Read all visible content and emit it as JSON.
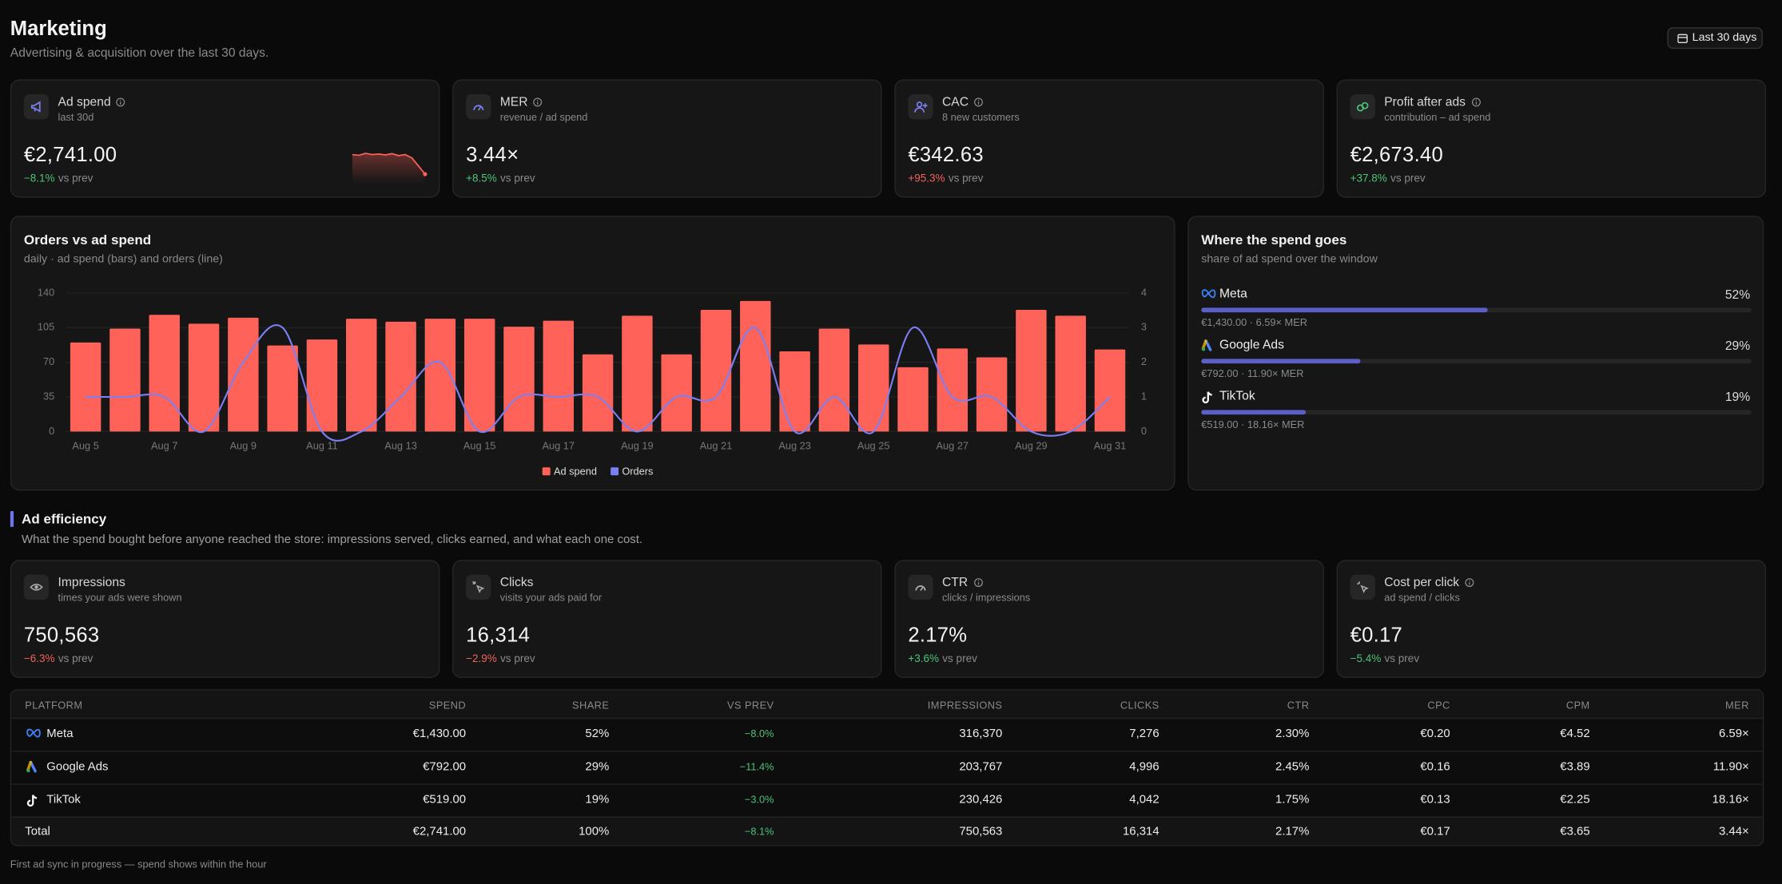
{
  "header": {
    "title": "Marketing",
    "subtitle": "Advertising & acquisition over the last 30 days.",
    "range_button": "Last 30 days"
  },
  "kpis": [
    {
      "title": "Ad spend",
      "subtitle": "last 30d",
      "value": "€2,741.00",
      "delta": "−8.1%",
      "comparison": "vs prev",
      "delta_color": "#4cc27a",
      "info": true,
      "sparkline": [
        80,
        78,
        84,
        80,
        82,
        79,
        83,
        77,
        80,
        70,
        45,
        20
      ]
    },
    {
      "title": "MER",
      "subtitle": "revenue / ad spend",
      "value": "3.44×",
      "delta": "+8.5%",
      "comparison": "vs prev",
      "delta_color": "#4cc27a",
      "info": true
    },
    {
      "title": "CAC",
      "subtitle": "8 new customers",
      "value": "€342.63",
      "delta": "+95.3%",
      "comparison": "vs prev",
      "delta_color": "#f0625a",
      "info": true
    },
    {
      "title": "Profit after ads",
      "subtitle": "contribution – ad spend",
      "value": "€2,673.40",
      "delta": "+37.8%",
      "comparison": "vs prev",
      "delta_color": "#4cc27a",
      "info": true
    }
  ],
  "chart_data": {
    "type": "bar",
    "title": "Orders vs ad spend",
    "subtitle": "daily · ad spend (bars) and orders (line)",
    "categories": [
      "Aug 5",
      null,
      "Aug 7",
      null,
      "Aug 9",
      null,
      "Aug 11",
      null,
      "Aug 13",
      null,
      "Aug 15",
      null,
      "Aug 17",
      null,
      "Aug 19",
      null,
      "Aug 21",
      null,
      "Aug 23",
      null,
      "Aug 25",
      null,
      "Aug 27",
      null,
      "Aug 29",
      null,
      "Aug 31"
    ],
    "series": [
      {
        "name": "Ad spend",
        "type": "bar",
        "color": "#ff6259",
        "values": [
          90,
          104,
          118,
          109,
          115,
          87,
          93,
          114,
          111,
          114,
          114,
          106,
          112,
          78,
          117,
          78,
          123,
          132,
          81,
          104,
          88,
          65,
          84,
          75,
          123,
          117,
          83
        ]
      },
      {
        "name": "Orders",
        "type": "line",
        "axis": "y2",
        "color": "#7c7ff2",
        "values": [
          1,
          1,
          1,
          0,
          2,
          3,
          0,
          0,
          1,
          2,
          0,
          1,
          1,
          1,
          0,
          1,
          1,
          3,
          0,
          1,
          0,
          3,
          1,
          1,
          0,
          0,
          1
        ]
      }
    ],
    "ylim": [
      0,
      140
    ],
    "yticks": [
      0,
      35,
      70,
      105,
      140
    ],
    "y2lim": [
      0,
      4
    ],
    "y2ticks": [
      0,
      1,
      2,
      3,
      4
    ],
    "grid": true,
    "legend": "bottom"
  },
  "spend_breakdown": {
    "title": "Where the spend goes",
    "subtitle": "share of ad spend over the window",
    "platforms": [
      {
        "name": "Meta",
        "share": 52,
        "share_label": "52%",
        "detail": "€1,430.00 · 6.59× MER",
        "color": "#5b5fc7"
      },
      {
        "name": "Google Ads",
        "share": 29,
        "share_label": "29%",
        "detail": "€792.00 · 11.90× MER",
        "color": "#5b5fc7"
      },
      {
        "name": "TikTok",
        "share": 19,
        "share_label": "19%",
        "detail": "€519.00 · 18.16× MER",
        "color": "#5b5fc7"
      }
    ]
  },
  "efficiency": {
    "title": "Ad efficiency",
    "description": "What the spend bought before anyone reached the store: impressions served, clicks earned, and what each one cost.",
    "kpis": [
      {
        "title": "Impressions",
        "subtitle": "times your ads were shown",
        "value": "750,563",
        "delta": "−6.3%",
        "comparison": "vs prev",
        "delta_color": "#f0625a",
        "info": false
      },
      {
        "title": "Clicks",
        "subtitle": "visits your ads paid for",
        "value": "16,314",
        "delta": "−2.9%",
        "comparison": "vs prev",
        "delta_color": "#f0625a",
        "info": false
      },
      {
        "title": "CTR",
        "subtitle": "clicks / impressions",
        "value": "2.17%",
        "delta": "+3.6%",
        "comparison": "vs prev",
        "delta_color": "#4cc27a",
        "info": true
      },
      {
        "title": "Cost per click",
        "subtitle": "ad spend / clicks",
        "value": "€0.17",
        "delta": "−5.4%",
        "comparison": "vs prev",
        "delta_color": "#4cc27a",
        "info": true
      }
    ]
  },
  "table": {
    "columns": [
      "PLATFORM",
      "SPEND",
      "SHARE",
      "VS PREV",
      "IMPRESSIONS",
      "CLICKS",
      "CTR",
      "CPC",
      "CPM",
      "MER"
    ],
    "rows": [
      [
        "Meta",
        "€1,430.00",
        "52%",
        "−8.0%",
        "316,370",
        "7,276",
        "2.30%",
        "€0.20",
        "€4.52",
        "6.59×"
      ],
      [
        "Google Ads",
        "€792.00",
        "29%",
        "−11.4%",
        "203,767",
        "4,996",
        "2.45%",
        "€0.16",
        "€3.89",
        "11.90×"
      ],
      [
        "TikTok",
        "€519.00",
        "19%",
        "−3.0%",
        "230,426",
        "4,042",
        "1.75%",
        "€0.13",
        "€2.25",
        "18.16×"
      ]
    ],
    "total": [
      "Total",
      "€2,741.00",
      "100%",
      "−8.1%",
      "750,563",
      "16,314",
      "2.17%",
      "€0.17",
      "€3.65",
      "3.44×"
    ]
  },
  "footer": "First ad sync in progress — spend shows within the hour"
}
